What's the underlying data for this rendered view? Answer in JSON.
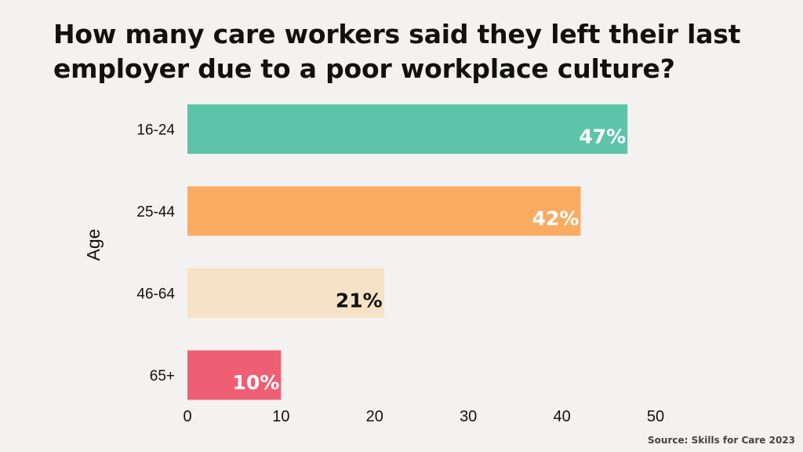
{
  "title": "How many care workers said they left their last employer due to a poor workplace culture?",
  "source": "Source: Skills for Care 2023",
  "chart_data": {
    "type": "bar",
    "orientation": "horizontal",
    "title": "How many care workers said they left their last employer due to a poor workplace culture?",
    "ylabel": "Age",
    "xlabel": "",
    "categories": [
      "16-24",
      "25-44",
      "46-64",
      "65+"
    ],
    "values": [
      47,
      42,
      21,
      10
    ],
    "data_labels": [
      "47%",
      "42%",
      "21%",
      "10%"
    ],
    "colors": [
      "#5ec4a7",
      "#f9ac62",
      "#f6e2c6",
      "#ef5f74"
    ],
    "label_colors": [
      "#ffffff",
      "#ffffff",
      "#111111",
      "#ffffff"
    ],
    "xlim": [
      0,
      50
    ],
    "xticks": [
      0,
      10,
      20,
      30,
      40,
      50
    ],
    "grid": false,
    "legend": "none"
  }
}
